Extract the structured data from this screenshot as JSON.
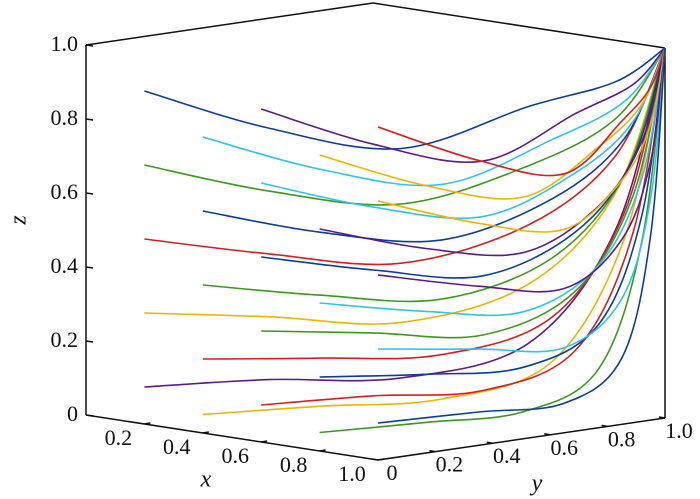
{
  "chart_data": {
    "type": "line3d",
    "xlabel": "x",
    "ylabel": "y",
    "zlabel": "z",
    "xlim": [
      0,
      1
    ],
    "ylim": [
      0,
      1
    ],
    "zlim": [
      0,
      1
    ],
    "xticks": [
      0.2,
      0.4,
      0.6,
      0.8,
      {
        "value": 1,
        "label": "1.0"
      }
    ],
    "yticks": [
      0,
      0.2,
      0.4,
      0.6,
      0.8,
      {
        "value": 1,
        "label": "1.0"
      }
    ],
    "zticks": [
      0,
      0.2,
      0.4,
      0.6,
      0.8,
      {
        "value": 1,
        "label": "1.0"
      }
    ],
    "series": [
      {
        "color": "#0a3d9e",
        "x": [
          0.2,
          0.28,
          0.44,
          0.68,
          0.88,
          1
        ],
        "y": [
          0,
          0.35,
          0.65,
          0.85,
          0.95,
          1
        ],
        "z": [
          0.9,
          0.77,
          0.7,
          0.82,
          0.9,
          1
        ]
      },
      {
        "color": "#3a9a1e",
        "x": [
          0.2,
          0.28,
          0.44,
          0.68,
          0.88,
          1
        ],
        "y": [
          0,
          0.35,
          0.65,
          0.85,
          0.95,
          1
        ],
        "z": [
          0.7,
          0.6,
          0.55,
          0.66,
          0.8,
          1
        ]
      },
      {
        "color": "#d62020",
        "x": [
          0.2,
          0.28,
          0.44,
          0.68,
          0.88,
          1
        ],
        "y": [
          0,
          0.35,
          0.65,
          0.85,
          0.95,
          1
        ],
        "z": [
          0.5,
          0.43,
          0.39,
          0.5,
          0.7,
          1
        ]
      },
      {
        "color": "#f0b400",
        "x": [
          0.2,
          0.28,
          0.44,
          0.68,
          0.88,
          1
        ],
        "y": [
          0,
          0.35,
          0.65,
          0.85,
          0.95,
          1
        ],
        "z": [
          0.3,
          0.26,
          0.23,
          0.34,
          0.6,
          1
        ]
      },
      {
        "color": "#5a1a8c",
        "x": [
          0.2,
          0.28,
          0.44,
          0.68,
          0.88,
          1
        ],
        "y": [
          0,
          0.35,
          0.65,
          0.85,
          0.95,
          1
        ],
        "z": [
          0.1,
          0.09,
          0.08,
          0.18,
          0.5,
          1
        ]
      },
      {
        "color": "#2ec4ee",
        "x": [
          0.4,
          0.46,
          0.58,
          0.76,
          0.91,
          1
        ],
        "y": [
          0,
          0.35,
          0.65,
          0.85,
          0.95,
          1
        ],
        "z": [
          0.8,
          0.68,
          0.62,
          0.74,
          0.85,
          1
        ]
      },
      {
        "color": "#0a3d9e",
        "x": [
          0.4,
          0.46,
          0.58,
          0.76,
          0.91,
          1
        ],
        "y": [
          0,
          0.35,
          0.65,
          0.85,
          0.95,
          1
        ],
        "z": [
          0.6,
          0.51,
          0.47,
          0.58,
          0.75,
          1
        ]
      },
      {
        "color": "#3a9a1e",
        "x": [
          0.4,
          0.46,
          0.58,
          0.76,
          0.91,
          1
        ],
        "y": [
          0,
          0.35,
          0.65,
          0.85,
          0.95,
          1
        ],
        "z": [
          0.4,
          0.34,
          0.31,
          0.42,
          0.65,
          1
        ]
      },
      {
        "color": "#d62020",
        "x": [
          0.4,
          0.46,
          0.58,
          0.76,
          0.91,
          1
        ],
        "y": [
          0,
          0.35,
          0.65,
          0.85,
          0.95,
          1
        ],
        "z": [
          0.2,
          0.17,
          0.16,
          0.26,
          0.55,
          1
        ]
      },
      {
        "color": "#f0b400",
        "x": [
          0.4,
          0.46,
          0.58,
          0.76,
          0.91,
          1
        ],
        "y": [
          0,
          0.35,
          0.65,
          0.85,
          0.95,
          1
        ],
        "z": [
          0.05,
          0.04,
          0.04,
          0.14,
          0.48,
          1
        ]
      },
      {
        "color": "#5a1a8c",
        "x": [
          0.6,
          0.64,
          0.72,
          0.84,
          0.94,
          1
        ],
        "y": [
          0,
          0.35,
          0.65,
          0.85,
          0.95,
          1
        ],
        "z": [
          0.9,
          0.77,
          0.7,
          0.82,
          0.9,
          1
        ]
      },
      {
        "color": "#2ec4ee",
        "x": [
          0.6,
          0.64,
          0.72,
          0.84,
          0.94,
          1
        ],
        "y": [
          0,
          0.35,
          0.65,
          0.85,
          0.95,
          1
        ],
        "z": [
          0.7,
          0.6,
          0.55,
          0.66,
          0.8,
          1
        ]
      },
      {
        "color": "#0a3d9e",
        "x": [
          0.6,
          0.64,
          0.72,
          0.84,
          0.94,
          1
        ],
        "y": [
          0,
          0.35,
          0.65,
          0.85,
          0.95,
          1
        ],
        "z": [
          0.5,
          0.43,
          0.39,
          0.5,
          0.7,
          1
        ]
      },
      {
        "color": "#3a9a1e",
        "x": [
          0.6,
          0.64,
          0.72,
          0.84,
          0.94,
          1
        ],
        "y": [
          0,
          0.35,
          0.65,
          0.85,
          0.95,
          1
        ],
        "z": [
          0.3,
          0.26,
          0.23,
          0.34,
          0.6,
          1
        ]
      },
      {
        "color": "#d62020",
        "x": [
          0.6,
          0.64,
          0.72,
          0.84,
          0.94,
          1
        ],
        "y": [
          0,
          0.35,
          0.65,
          0.85,
          0.95,
          1
        ],
        "z": [
          0.1,
          0.09,
          0.08,
          0.18,
          0.5,
          1
        ]
      },
      {
        "color": "#f0b400",
        "x": [
          0.8,
          0.82,
          0.86,
          0.92,
          0.97,
          1
        ],
        "y": [
          0,
          0.35,
          0.65,
          0.85,
          0.95,
          1
        ],
        "z": [
          0.8,
          0.68,
          0.62,
          0.74,
          0.85,
          1
        ]
      },
      {
        "color": "#5a1a8c",
        "x": [
          0.8,
          0.82,
          0.86,
          0.92,
          0.97,
          1
        ],
        "y": [
          0,
          0.35,
          0.65,
          0.85,
          0.95,
          1
        ],
        "z": [
          0.6,
          0.51,
          0.47,
          0.58,
          0.75,
          1
        ]
      },
      {
        "color": "#2ec4ee",
        "x": [
          0.8,
          0.82,
          0.86,
          0.92,
          0.97,
          1
        ],
        "y": [
          0,
          0.35,
          0.65,
          0.85,
          0.95,
          1
        ],
        "z": [
          0.4,
          0.34,
          0.31,
          0.42,
          0.65,
          1
        ]
      },
      {
        "color": "#0a3d9e",
        "x": [
          0.8,
          0.82,
          0.86,
          0.92,
          0.97,
          1
        ],
        "y": [
          0,
          0.35,
          0.65,
          0.85,
          0.95,
          1
        ],
        "z": [
          0.2,
          0.17,
          0.16,
          0.26,
          0.55,
          1
        ]
      },
      {
        "color": "#3a9a1e",
        "x": [
          0.8,
          0.82,
          0.86,
          0.92,
          0.97,
          1
        ],
        "y": [
          0,
          0.35,
          0.65,
          0.85,
          0.95,
          1
        ],
        "z": [
          0.05,
          0.04,
          0.04,
          0.14,
          0.48,
          1
        ]
      },
      {
        "color": "#d62020",
        "x": [
          1,
          1,
          1,
          1,
          1,
          1
        ],
        "y": [
          0,
          0.35,
          0.65,
          0.85,
          0.95,
          1
        ],
        "z": [
          0.9,
          0.77,
          0.7,
          0.82,
          0.9,
          1
        ]
      },
      {
        "color": "#f0b400",
        "x": [
          1,
          1,
          1,
          1,
          1,
          1
        ],
        "y": [
          0,
          0.35,
          0.65,
          0.85,
          0.95,
          1
        ],
        "z": [
          0.7,
          0.6,
          0.55,
          0.66,
          0.8,
          1
        ]
      },
      {
        "color": "#5a1a8c",
        "x": [
          1,
          1,
          1,
          1,
          1,
          1
        ],
        "y": [
          0,
          0.35,
          0.65,
          0.85,
          0.95,
          1
        ],
        "z": [
          0.5,
          0.43,
          0.39,
          0.5,
          0.7,
          1
        ]
      },
      {
        "color": "#2ec4ee",
        "x": [
          1,
          1,
          1,
          1,
          1,
          1
        ],
        "y": [
          0,
          0.35,
          0.65,
          0.85,
          0.95,
          1
        ],
        "z": [
          0.3,
          0.26,
          0.23,
          0.34,
          0.6,
          1
        ]
      },
      {
        "color": "#0a3d9e",
        "x": [
          1,
          1,
          1,
          1,
          1,
          1
        ],
        "y": [
          0,
          0.35,
          0.65,
          0.85,
          0.95,
          1
        ],
        "z": [
          0.1,
          0.09,
          0.08,
          0.18,
          0.5,
          1
        ]
      }
    ]
  }
}
